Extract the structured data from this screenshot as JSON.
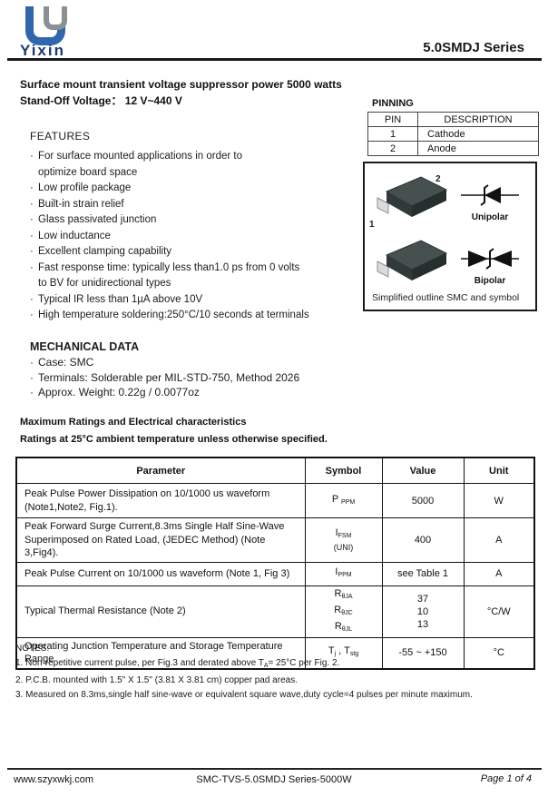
{
  "header": {
    "logo_text": "Yixin",
    "series_title": "5.0SMDJ  Series",
    "subtitle_line1": "Surface mount transient  voltage suppressor power 5000 watts",
    "subtitle_line2": "Stand-Off Voltage：  12 V~440 V"
  },
  "pinning": {
    "title": "PINNING",
    "columns": [
      "PIN",
      "DESCRIPTION"
    ],
    "rows": [
      {
        "pin": "1",
        "description": "Cathode"
      },
      {
        "pin": "2",
        "description": "Anode"
      }
    ]
  },
  "features": {
    "title": "FEATURES",
    "items": [
      {
        "text": "For surface mounted applications in order to",
        "cont": false
      },
      {
        "text": "optimize board space",
        "cont": true
      },
      {
        "text": "Low profile package",
        "cont": false
      },
      {
        "text": "Built-in strain relief",
        "cont": false
      },
      {
        "text": "Glass passivated junction",
        "cont": false
      },
      {
        "text": "Low inductance",
        "cont": false
      },
      {
        "text": "Excellent clamping capability",
        "cont": false
      },
      {
        "text": "Fast response time: typically less than1.0 ps from 0 volts",
        "cont": false
      },
      {
        "text": "to BV for unidirectional types",
        "cont": true
      },
      {
        "text": "Typical IR less than 1µA above 10V",
        "cont": false
      },
      {
        "text": "High temperature soldering:250°C/10 seconds at terminals",
        "cont": false
      }
    ]
  },
  "package_box": {
    "pin1_label": "1",
    "pin2_label": "2",
    "unipolar_label": "Unipolar",
    "bipolar_label": "Bipolar",
    "caption": "Simplified outline SMC and symbol"
  },
  "mechanical": {
    "title": "MECHANICAL DATA",
    "items": [
      "Case: SMC",
      "Terminals: Solderable per MIL-STD-750, Method 2026",
      "Approx. Weight: 0.22g / 0.0077oz"
    ]
  },
  "ratings": {
    "heading1": "Maximum Ratings and Electrical characteristics",
    "heading2": "Ratings at 25°C ambient temperature unless otherwise specified."
  },
  "table": {
    "columns": [
      "Parameter",
      "Symbol",
      "Value",
      "Unit"
    ],
    "rows": [
      {
        "h": 38,
        "param_lines": [
          "Peak Pulse Power Dissipation on 10/1000 us waveform",
          "(Note1,Note2, Fig.1)."
        ],
        "symbol_lines": [
          {
            "segs": [
              {
                "t": "P "
              },
              {
                "s": "PPM"
              }
            ],
            "small": false
          }
        ],
        "value_lines": [
          "5000"
        ],
        "unit": "W"
      },
      {
        "h": 38,
        "param_lines": [
          "Peak Forward Surge Current,8.3ms Single Half Sine-Wave",
          "Superimposed on Rated Load, (JEDEC Method) (Note 3,Fig4)."
        ],
        "symbol_lines": [
          {
            "segs": [
              {
                "t": "I"
              },
              {
                "s": "FSM"
              }
            ],
            "small": false
          },
          {
            "segs": [
              {
                "t": "(UNI)"
              }
            ],
            "small": true
          }
        ],
        "value_lines": [
          "400"
        ],
        "unit": "A"
      },
      {
        "h": 26,
        "param_lines": [
          "Peak Pulse Current on 10/1000 us waveform (Note 1, Fig 3)"
        ],
        "symbol_lines": [
          {
            "segs": [
              {
                "t": "I"
              },
              {
                "s": "PPM"
              }
            ],
            "small": false
          }
        ],
        "value_lines": [
          "see Table 1"
        ],
        "unit": "A"
      },
      {
        "h": 48,
        "param_lines": [
          "Typical Thermal Resistance  (Note 2)"
        ],
        "symbol_lines": [
          {
            "segs": [
              {
                "t": "R"
              },
              {
                "s": "θJA"
              }
            ],
            "small": false
          },
          {
            "segs": [
              {
                "t": "R"
              },
              {
                "s": "θJC"
              }
            ],
            "small": false
          },
          {
            "segs": [
              {
                "t": "R"
              },
              {
                "s": "θJL"
              }
            ],
            "small": false
          }
        ],
        "value_lines": [
          "37",
          "10",
          "13"
        ],
        "unit": "°C/W"
      },
      {
        "h": 26,
        "param_lines": [
          "Operating Junction Temperature and Storage Temperature Range"
        ],
        "symbol_lines": [
          {
            "segs": [
              {
                "t": "T"
              },
              {
                "s": "j"
              },
              {
                "t": " , T"
              },
              {
                "s": "stg"
              }
            ],
            "small": false
          }
        ],
        "value_lines": [
          "-55 ~ +150"
        ],
        "unit": "°C"
      }
    ]
  },
  "notes": {
    "title": "NOTES:",
    "items": [
      {
        "segs": [
          {
            "t": "1. Non-repetitive current pulse, per Fig.3 and derated above T"
          },
          {
            "s": "A"
          },
          {
            "t": "= 25°C  per Fig. 2."
          }
        ]
      },
      {
        "segs": [
          {
            "t": "2. P.C.B. mounted with 1.5\" X 1.5\" (3.81 X 3.81 cm) copper pad areas."
          }
        ]
      },
      {
        "segs": [
          {
            "t": "3. Measured on 8.3ms,single half sine-wave or equivalent square wave,duty cycle=4 pulses per minute maximum."
          }
        ]
      }
    ]
  },
  "footer": {
    "website": "www.szyxwkj.com",
    "doc_id": "SMC-TVS-5.0SMDJ  Series-5000W",
    "page": "Page 1 of 4"
  },
  "colors": {
    "logo_blue": "#2f66ad",
    "logo_gray": "#8a9096",
    "logo_text_navy": "#1a3a6e",
    "chip_body_dark": "#39514e",
    "text": "#111111"
  }
}
